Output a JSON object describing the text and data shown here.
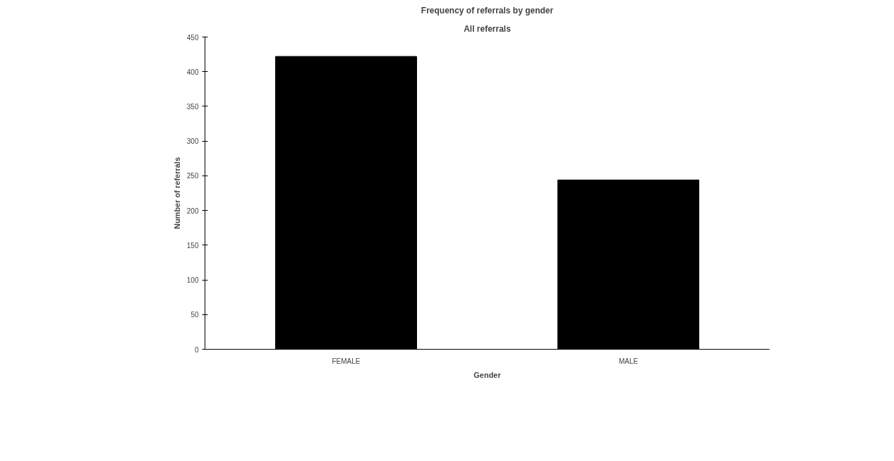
{
  "chart_data": {
    "type": "bar",
    "title": "Frequency of referrals by gender",
    "subtitle": "All referrals",
    "xlabel": "Gender",
    "ylabel": "Number of referrals",
    "categories": [
      "FEMALE",
      "MALE"
    ],
    "series": [
      {
        "color": "#000000",
        "values": [
          422,
          244
        ]
      }
    ],
    "ylim": [
      0,
      450
    ],
    "yticks": [
      0,
      50,
      100,
      150,
      200,
      250,
      300,
      350,
      400,
      450
    ],
    "grid": false
  }
}
